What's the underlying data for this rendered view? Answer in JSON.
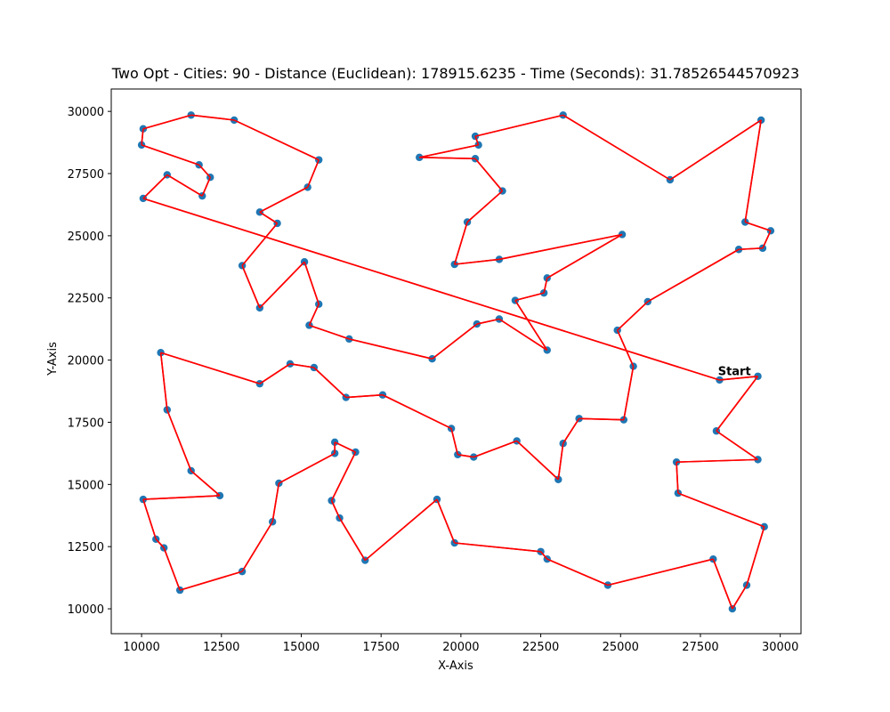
{
  "chart_data": {
    "type": "line",
    "title": "Two Opt - Cities: 90 - Distance (Euclidean): 178915.6235 - Time (Seconds): 31.78526544570923",
    "xlabel": "X-Axis",
    "ylabel": "Y-Axis",
    "xlim": [
      9050,
      30650
    ],
    "ylim": [
      9000,
      30900
    ],
    "xticks": [
      10000,
      12500,
      15000,
      17500,
      20000,
      22500,
      25000,
      27500,
      30000
    ],
    "yticks": [
      10000,
      12500,
      15000,
      17500,
      20000,
      22500,
      25000,
      27500,
      30000
    ],
    "grid": false,
    "annotation": {
      "text": "Start",
      "x": 28050,
      "y": 19400
    },
    "colors": {
      "route": "#ff0000",
      "city": "#1f77b4"
    },
    "series": [
      {
        "marker": "circle",
        "points": [
          [
            28100,
            19200
          ],
          [
            29300,
            19350
          ],
          [
            28000,
            17150
          ],
          [
            29300,
            16000
          ],
          [
            26750,
            15900
          ],
          [
            26800,
            14650
          ],
          [
            29500,
            13300
          ],
          [
            28950,
            10950
          ],
          [
            28500,
            10000
          ],
          [
            27900,
            12000
          ],
          [
            24600,
            10950
          ],
          [
            22700,
            12000
          ],
          [
            22500,
            12300
          ],
          [
            19800,
            12650
          ],
          [
            19250,
            14400
          ],
          [
            17000,
            11950
          ],
          [
            16200,
            13650
          ],
          [
            15950,
            14350
          ],
          [
            16700,
            16300
          ],
          [
            16050,
            16700
          ],
          [
            16050,
            16250
          ],
          [
            14300,
            15050
          ],
          [
            14100,
            13500
          ],
          [
            13150,
            11500
          ],
          [
            11200,
            10750
          ],
          [
            10700,
            12450
          ],
          [
            10450,
            12800
          ],
          [
            10050,
            14400
          ],
          [
            12450,
            14550
          ],
          [
            11550,
            15550
          ],
          [
            10800,
            18000
          ],
          [
            10600,
            20300
          ],
          [
            13700,
            19050
          ],
          [
            14650,
            19850
          ],
          [
            15400,
            19700
          ],
          [
            16400,
            18500
          ],
          [
            17550,
            18600
          ],
          [
            19700,
            17250
          ],
          [
            19900,
            16200
          ],
          [
            20400,
            16100
          ],
          [
            21750,
            16750
          ],
          [
            23050,
            15200
          ],
          [
            23200,
            16650
          ],
          [
            23700,
            17650
          ],
          [
            25100,
            17600
          ],
          [
            25400,
            19750
          ],
          [
            24900,
            21200
          ],
          [
            25850,
            22350
          ],
          [
            28700,
            24450
          ],
          [
            29450,
            24500
          ],
          [
            29700,
            25200
          ],
          [
            28900,
            25550
          ],
          [
            29400,
            29650
          ],
          [
            26550,
            27250
          ],
          [
            23200,
            29850
          ],
          [
            20450,
            29000
          ],
          [
            20550,
            28650
          ],
          [
            18700,
            28150
          ],
          [
            20450,
            28100
          ],
          [
            21300,
            26800
          ],
          [
            20200,
            25550
          ],
          [
            19800,
            23850
          ],
          [
            21200,
            24050
          ],
          [
            25050,
            25050
          ],
          [
            22700,
            23300
          ],
          [
            22600,
            22700
          ],
          [
            21700,
            22400
          ],
          [
            22700,
            20400
          ],
          [
            21200,
            21650
          ],
          [
            20500,
            21450
          ],
          [
            19100,
            20050
          ],
          [
            16500,
            20850
          ],
          [
            15250,
            21400
          ],
          [
            15550,
            22250
          ],
          [
            15100,
            23950
          ],
          [
            13700,
            22100
          ],
          [
            13150,
            23800
          ],
          [
            14250,
            25500
          ],
          [
            13700,
            25950
          ],
          [
            15200,
            26950
          ],
          [
            15550,
            28050
          ],
          [
            12900,
            29650
          ],
          [
            11550,
            29850
          ],
          [
            10050,
            29300
          ],
          [
            10000,
            28650
          ],
          [
            11800,
            27850
          ],
          [
            12150,
            27350
          ],
          [
            11900,
            26600
          ],
          [
            10800,
            27450
          ],
          [
            10050,
            26500
          ]
        ]
      }
    ]
  }
}
